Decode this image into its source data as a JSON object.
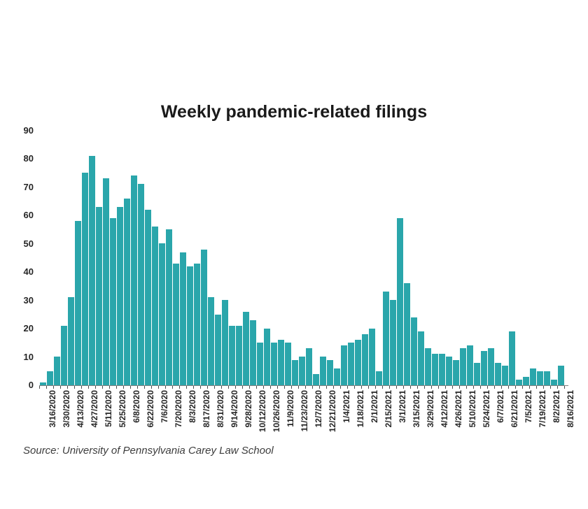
{
  "chart_data": {
    "type": "bar",
    "title": "Weekly pandemic-related filings",
    "source_note": "Source: University of Pennsylvania Carey Law School",
    "xlabel": "",
    "ylabel": "",
    "ylim": [
      0,
      90
    ],
    "y_ticks": [
      0,
      10,
      20,
      30,
      40,
      50,
      60,
      70,
      80,
      90
    ],
    "grid": false,
    "legend": false,
    "bar_color": "#2aa6ab",
    "categories": [
      "3/16/2020",
      "3/23/2020",
      "3/30/2020",
      "4/6/2020",
      "4/13/2020",
      "4/20/2020",
      "4/27/2020",
      "5/4/2020",
      "5/11/2020",
      "5/18/2020",
      "5/25/2020",
      "6/1/2020",
      "6/8/2020",
      "6/15/2020",
      "6/22/2020",
      "6/29/2020",
      "7/6/2020",
      "7/13/2020",
      "7/20/2020",
      "7/27/2020",
      "8/3/2020",
      "8/10/2020",
      "8/17/2020",
      "8/24/2020",
      "8/31/2020",
      "9/7/2020",
      "9/14/2020",
      "9/21/2020",
      "9/28/2020",
      "10/5/2020",
      "10/12/2020",
      "10/19/2020",
      "10/26/2020",
      "11/2/2020",
      "11/9/2020",
      "11/16/2020",
      "11/23/2020",
      "11/30/2020",
      "12/7/2020",
      "12/14/2020",
      "12/21/2020",
      "12/28/2020",
      "1/4/2021",
      "1/11/2021",
      "1/18/2021",
      "1/25/2021",
      "2/1/2021",
      "2/8/2021",
      "2/15/2021",
      "2/22/2021",
      "3/1/2021",
      "3/8/2021",
      "3/15/2021",
      "3/22/2021",
      "3/29/2021",
      "4/5/2021",
      "4/12/2021",
      "4/19/2021",
      "4/26/2021",
      "5/3/2021",
      "5/10/2021",
      "5/17/2021",
      "5/24/2021",
      "5/31/2021",
      "6/7/2021",
      "6/14/2021",
      "6/21/2021",
      "6/28/2021",
      "7/5/2021",
      "7/12/2021",
      "7/19/2021",
      "7/26/2021",
      "8/2/2021",
      "8/9/2021",
      "8/16/2021"
    ],
    "values": [
      1,
      5,
      10,
      21,
      31,
      58,
      75,
      81,
      63,
      73,
      59,
      63,
      66,
      74,
      71,
      62,
      56,
      50,
      55,
      43,
      47,
      42,
      43,
      48,
      31,
      25,
      30,
      21,
      21,
      26,
      23,
      15,
      20,
      15,
      16,
      15,
      9,
      10,
      13,
      4,
      10,
      9,
      6,
      14,
      15,
      16,
      18,
      20,
      5,
      33,
      30,
      59,
      36,
      24,
      19,
      13,
      11,
      11,
      10,
      9,
      13,
      14,
      8,
      12,
      13,
      8,
      7,
      19,
      2,
      3,
      6,
      5,
      5,
      2,
      7
    ],
    "x_tick_labels_shown": [
      "3/16/2020",
      "3/30/2020",
      "4/13/2020",
      "4/27/2020",
      "5/11/2020",
      "5/25/2020",
      "6/8/2020",
      "6/22/2020",
      "7/6/2020",
      "7/20/2020",
      "8/3/2020",
      "8/17/2020",
      "8/31/2020",
      "9/14/2020",
      "9/28/2020",
      "10/12/2020",
      "10/26/2020",
      "11/9/2020",
      "11/23/2020",
      "12/7/2020",
      "12/21/2020",
      "1/4/2021",
      "1/18/2021",
      "2/1/2021",
      "2/15/2021",
      "3/1/2021",
      "3/15/2021",
      "3/29/2021",
      "4/12/2021",
      "4/26/2021",
      "5/10/2021",
      "5/24/2021",
      "6/7/2021",
      "6/21/2021",
      "7/5/2021",
      "7/19/2021",
      "8/2/2021",
      "8/16/2021"
    ]
  }
}
